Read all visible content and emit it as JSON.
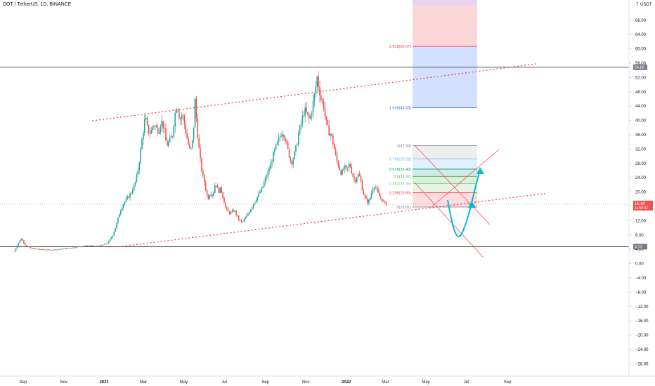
{
  "header": {
    "symbol": "DOT / TetherUS, 1D, BINANCE"
  },
  "axis": {
    "currency": "USDT"
  },
  "chart_data": {
    "type": "candlestick",
    "ylim": [
      -30,
      72
    ],
    "price_ticks": [
      68,
      64,
      60,
      56,
      52,
      48,
      44,
      40,
      36,
      32,
      28,
      24,
      20,
      16,
      12,
      8,
      4,
      0,
      -4,
      -8,
      -12,
      -16,
      -20,
      -24,
      -28
    ],
    "price_tick_labels": [
      "68.00",
      "64.00",
      "60.00",
      "56.00",
      "52.00",
      "48.00",
      "44.00",
      "40.00",
      "36.00",
      "32.00",
      "28.00",
      "24.00",
      "20.00",
      "16.00",
      "12.00",
      "8.00",
      "4.00",
      "0.00",
      "−4.00",
      "−8.00",
      "−12.00",
      "−16.00",
      "−20.00",
      "−24.00",
      "−28.00"
    ],
    "time_labels": [
      {
        "label": "Sep",
        "day": 0
      },
      {
        "label": "Nov",
        "day": 61
      },
      {
        "label": "2021",
        "day": 122
      },
      {
        "label": "Mar",
        "day": 181
      },
      {
        "label": "May",
        "day": 242
      },
      {
        "label": "Jul",
        "day": 303
      },
      {
        "label": "Sep",
        "day": 365
      },
      {
        "label": "Nov",
        "day": 426
      },
      {
        "label": "2022",
        "day": 487
      },
      {
        "label": "Mar",
        "day": 546
      },
      {
        "label": "May",
        "day": 607
      },
      {
        "label": "Jul",
        "day": 668
      },
      {
        "label": "Sep",
        "day": 730
      }
    ],
    "key_prices": [
      {
        "name": "resistance",
        "price": 54.88,
        "label": "54.88"
      },
      {
        "name": "support",
        "price": 4.73,
        "label": "4.73"
      }
    ],
    "current_price": {
      "price": 16.6,
      "label": "16.60",
      "countdown": "11:56:42"
    },
    "price_path": [
      [
        -13,
        3.5
      ],
      [
        -8,
        5.5
      ],
      [
        -3,
        7.0
      ],
      [
        4,
        5.0
      ],
      [
        12,
        4.2
      ],
      [
        25,
        4.0
      ],
      [
        40,
        3.8
      ],
      [
        55,
        4.0
      ],
      [
        70,
        4.3
      ],
      [
        85,
        4.8
      ],
      [
        100,
        5.0
      ],
      [
        110,
        4.8
      ],
      [
        120,
        5.2
      ],
      [
        128,
        5.8
      ],
      [
        135,
        8.0
      ],
      [
        140,
        10.5
      ],
      [
        145,
        14.0
      ],
      [
        150,
        16.5
      ],
      [
        158,
        18.5
      ],
      [
        163,
        20.0
      ],
      [
        168,
        22.0
      ],
      [
        172,
        25.0
      ],
      [
        176,
        30.0
      ],
      [
        180,
        36.0
      ],
      [
        184,
        41.0
      ],
      [
        188,
        37.0
      ],
      [
        192,
        36.5
      ],
      [
        196,
        39.0
      ],
      [
        200,
        38.0
      ],
      [
        204,
        37.0
      ],
      [
        208,
        40.0
      ],
      [
        212,
        38.0
      ],
      [
        216,
        33.0
      ],
      [
        220,
        34.0
      ],
      [
        225,
        36.0
      ],
      [
        228,
        41.0
      ],
      [
        232,
        45.0
      ],
      [
        236,
        40.0
      ],
      [
        240,
        42.0
      ],
      [
        244,
        38.0
      ],
      [
        248,
        34.0
      ],
      [
        252,
        31.0
      ],
      [
        256,
        35.0
      ],
      [
        259,
        45.5
      ],
      [
        262,
        38.0
      ],
      [
        266,
        30.0
      ],
      [
        270,
        25.0
      ],
      [
        274,
        22.0
      ],
      [
        278,
        18.0
      ],
      [
        282,
        20.0
      ],
      [
        286,
        19.0
      ],
      [
        290,
        23.0
      ],
      [
        294,
        20.0
      ],
      [
        298,
        21.0
      ],
      [
        302,
        18.0
      ],
      [
        306,
        15.0
      ],
      [
        312,
        14.0
      ],
      [
        318,
        15.0
      ],
      [
        324,
        12.5
      ],
      [
        330,
        11.5
      ],
      [
        336,
        13.0
      ],
      [
        342,
        15.0
      ],
      [
        348,
        17.0
      ],
      [
        354,
        19.0
      ],
      [
        360,
        21.0
      ],
      [
        366,
        24.0
      ],
      [
        372,
        27.0
      ],
      [
        378,
        31.0
      ],
      [
        384,
        34.0
      ],
      [
        388,
        36.0
      ],
      [
        392,
        37.0
      ],
      [
        396,
        34.0
      ],
      [
        400,
        31.0
      ],
      [
        404,
        28.0
      ],
      [
        408,
        30.0
      ],
      [
        412,
        33.0
      ],
      [
        416,
        37.0
      ],
      [
        420,
        40.0
      ],
      [
        424,
        43.0
      ],
      [
        428,
        41.5
      ],
      [
        432,
        40.0
      ],
      [
        436,
        44.0
      ],
      [
        440,
        48.0
      ],
      [
        443,
        52.0
      ],
      [
        446,
        49.0
      ],
      [
        449,
        46.0
      ],
      [
        453,
        44.0
      ],
      [
        456,
        40.0
      ],
      [
        460,
        37.0
      ],
      [
        464,
        36.0
      ],
      [
        468,
        33.0
      ],
      [
        472,
        29.0
      ],
      [
        476,
        27.0
      ],
      [
        480,
        25.0
      ],
      [
        484,
        27.0
      ],
      [
        488,
        26.0
      ],
      [
        492,
        28.0
      ],
      [
        496,
        25.0
      ],
      [
        500,
        23.0
      ],
      [
        504,
        25.0
      ],
      [
        508,
        24.0
      ],
      [
        512,
        20.0
      ],
      [
        516,
        18.0
      ],
      [
        520,
        17.0
      ],
      [
        524,
        19.0
      ],
      [
        528,
        22.0
      ],
      [
        532,
        21.0
      ],
      [
        536,
        19.0
      ],
      [
        540,
        18.0
      ],
      [
        544,
        17.0
      ],
      [
        548,
        16.6
      ]
    ],
    "fib_levels": [
      {
        "ratio": "0",
        "label": "0(15.81)",
        "price": 15.81,
        "color": "#787b86"
      },
      {
        "ratio": "0.236",
        "label": "0.236(19.85)",
        "price": 19.85,
        "color": "#f23645"
      },
      {
        "ratio": "0.382",
        "label": "0.382(22.35)",
        "price": 22.35,
        "color": "#81c784"
      },
      {
        "ratio": "0.5",
        "label": "0.5(24.37)",
        "price": 24.37,
        "color": "#4caf50"
      },
      {
        "ratio": "0.618",
        "label": "0.618(26.40)",
        "price": 26.4,
        "color": "#089981"
      },
      {
        "ratio": "0.786",
        "label": "0.786(29.28)",
        "price": 29.28,
        "color": "#64b5f6"
      },
      {
        "ratio": "1",
        "label": "1(32.94)",
        "price": 32.94,
        "color": "#787b86"
      },
      {
        "ratio": "1.618",
        "label": "1.618(43.53)",
        "price": 43.53,
        "color": "#2962ff"
      },
      {
        "ratio": "2.618",
        "label": "2.618(60.67)",
        "price": 60.67,
        "color": "#f23645"
      }
    ],
    "fib_bands": [
      {
        "from": 15.81,
        "to": 19.85,
        "color": "#f7525f"
      },
      {
        "from": 19.85,
        "to": 22.35,
        "color": "#81c784"
      },
      {
        "from": 22.35,
        "to": 24.37,
        "color": "#4caf50"
      },
      {
        "from": 24.37,
        "to": 26.4,
        "color": "#089981"
      },
      {
        "from": 26.4,
        "to": 29.28,
        "color": "#64b5f6"
      },
      {
        "from": 29.28,
        "to": 32.94,
        "color": "#a8a8a8"
      },
      {
        "from": 32.94,
        "to": 43.53,
        "color": "#ffffff"
      },
      {
        "from": 43.53,
        "to": 60.67,
        "color": "#2962ff"
      },
      {
        "from": 60.67,
        "to": 72.0,
        "color": "#f23645"
      },
      {
        "from": 72.0,
        "to": 90.0,
        "color": "#9c27b0"
      }
    ],
    "colors": {
      "up": "#26a69a",
      "down": "#ef5350",
      "trendline": "#f23645",
      "channel": "#f7525f",
      "projection": "#00bcd4",
      "horizontal": "#555555"
    }
  }
}
